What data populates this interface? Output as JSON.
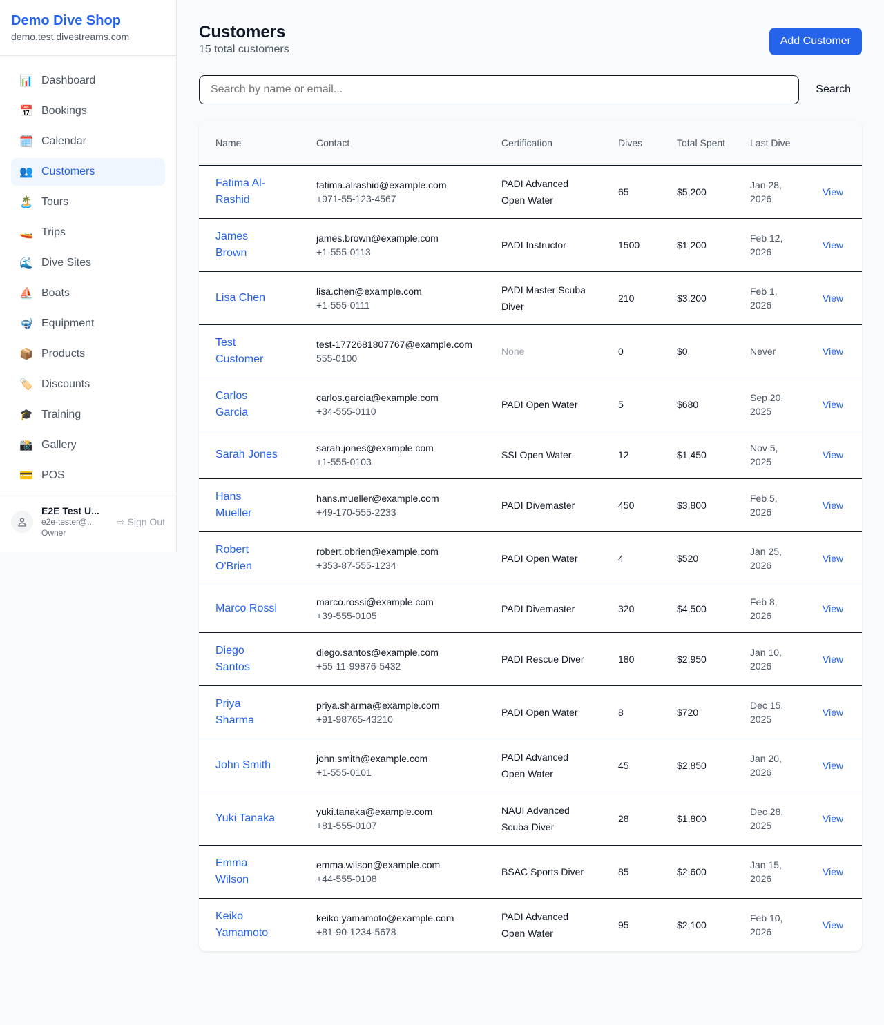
{
  "sidebar": {
    "shop_name": "Demo Dive Shop",
    "domain": "demo.test.divestreams.com",
    "items": [
      {
        "label": "Dashboard",
        "icon": "📊"
      },
      {
        "label": "Bookings",
        "icon": "📅"
      },
      {
        "label": "Calendar",
        "icon": "🗓️"
      },
      {
        "label": "Customers",
        "icon": "👥",
        "active": true
      },
      {
        "label": "Tours",
        "icon": "🏝️"
      },
      {
        "label": "Trips",
        "icon": "🚤"
      },
      {
        "label": "Dive Sites",
        "icon": "🌊"
      },
      {
        "label": "Boats",
        "icon": "⛵"
      },
      {
        "label": "Equipment",
        "icon": "🤿"
      },
      {
        "label": "Products",
        "icon": "📦"
      },
      {
        "label": "Discounts",
        "icon": "🏷️"
      },
      {
        "label": "Training",
        "icon": "🎓"
      },
      {
        "label": "Gallery",
        "icon": "📸"
      },
      {
        "label": "POS",
        "icon": "💳"
      }
    ],
    "user": {
      "name": "E2E Test U...",
      "email": "e2e-tester@...",
      "role": "Owner",
      "sign_out": "Sign Out"
    }
  },
  "header": {
    "title": "Customers",
    "subtitle": "15 total customers",
    "add_button": "Add Customer"
  },
  "search": {
    "placeholder": "Search by name or email...",
    "button": "Search"
  },
  "table": {
    "columns": [
      "Name",
      "Contact",
      "Certification",
      "Dives",
      "Total Spent",
      "Last Dive",
      ""
    ],
    "view_label": "View",
    "rows": [
      {
        "name": "Fatima Al-Rashid",
        "email": "fatima.alrashid@example.com",
        "phone": "+971-55-123-4567",
        "cert": "PADI Advanced Open Water",
        "dives": "65",
        "spent": "$5,200",
        "last": "Jan 28, 2026"
      },
      {
        "name": "James Brown",
        "email": "james.brown@example.com",
        "phone": "+1-555-0113",
        "cert": "PADI Instructor",
        "dives": "1500",
        "spent": "$1,200",
        "last": "Feb 12, 2026"
      },
      {
        "name": "Lisa Chen",
        "email": "lisa.chen@example.com",
        "phone": "+1-555-0111",
        "cert": "PADI Master Scuba Diver",
        "dives": "210",
        "spent": "$3,200",
        "last": "Feb 1, 2026"
      },
      {
        "name": "Test Customer",
        "email": "test-1772681807767@example.com",
        "phone": "555-0100",
        "cert": "None",
        "dives": "0",
        "spent": "$0",
        "last": "Never"
      },
      {
        "name": "Carlos Garcia",
        "email": "carlos.garcia@example.com",
        "phone": "+34-555-0110",
        "cert": "PADI Open Water",
        "dives": "5",
        "spent": "$680",
        "last": "Sep 20, 2025"
      },
      {
        "name": "Sarah Jones",
        "email": "sarah.jones@example.com",
        "phone": "+1-555-0103",
        "cert": "SSI Open Water",
        "dives": "12",
        "spent": "$1,450",
        "last": "Nov 5, 2025"
      },
      {
        "name": "Hans Mueller",
        "email": "hans.mueller@example.com",
        "phone": "+49-170-555-2233",
        "cert": "PADI Divemaster",
        "dives": "450",
        "spent": "$3,800",
        "last": "Feb 5, 2026"
      },
      {
        "name": "Robert O'Brien",
        "email": "robert.obrien@example.com",
        "phone": "+353-87-555-1234",
        "cert": "PADI Open Water",
        "dives": "4",
        "spent": "$520",
        "last": "Jan 25, 2026"
      },
      {
        "name": "Marco Rossi",
        "email": "marco.rossi@example.com",
        "phone": "+39-555-0105",
        "cert": "PADI Divemaster",
        "dives": "320",
        "spent": "$4,500",
        "last": "Feb 8, 2026"
      },
      {
        "name": "Diego Santos",
        "email": "diego.santos@example.com",
        "phone": "+55-11-99876-5432",
        "cert": "PADI Rescue Diver",
        "dives": "180",
        "spent": "$2,950",
        "last": "Jan 10, 2026"
      },
      {
        "name": "Priya Sharma",
        "email": "priya.sharma@example.com",
        "phone": "+91-98765-43210",
        "cert": "PADI Open Water",
        "dives": "8",
        "spent": "$720",
        "last": "Dec 15, 2025"
      },
      {
        "name": "John Smith",
        "email": "john.smith@example.com",
        "phone": "+1-555-0101",
        "cert": "PADI Advanced Open Water",
        "dives": "45",
        "spent": "$2,850",
        "last": "Jan 20, 2026"
      },
      {
        "name": "Yuki Tanaka",
        "email": "yuki.tanaka@example.com",
        "phone": "+81-555-0107",
        "cert": "NAUI Advanced Scuba Diver",
        "dives": "28",
        "spent": "$1,800",
        "last": "Dec 28, 2025"
      },
      {
        "name": "Emma Wilson",
        "email": "emma.wilson@example.com",
        "phone": "+44-555-0108",
        "cert": "BSAC Sports Diver",
        "dives": "85",
        "spent": "$2,600",
        "last": "Jan 15, 2026"
      },
      {
        "name": "Keiko Yamamoto",
        "email": "keiko.yamamoto@example.com",
        "phone": "+81-90-1234-5678",
        "cert": "PADI Advanced Open Water",
        "dives": "95",
        "spent": "$2,100",
        "last": "Feb 10, 2026"
      }
    ]
  }
}
